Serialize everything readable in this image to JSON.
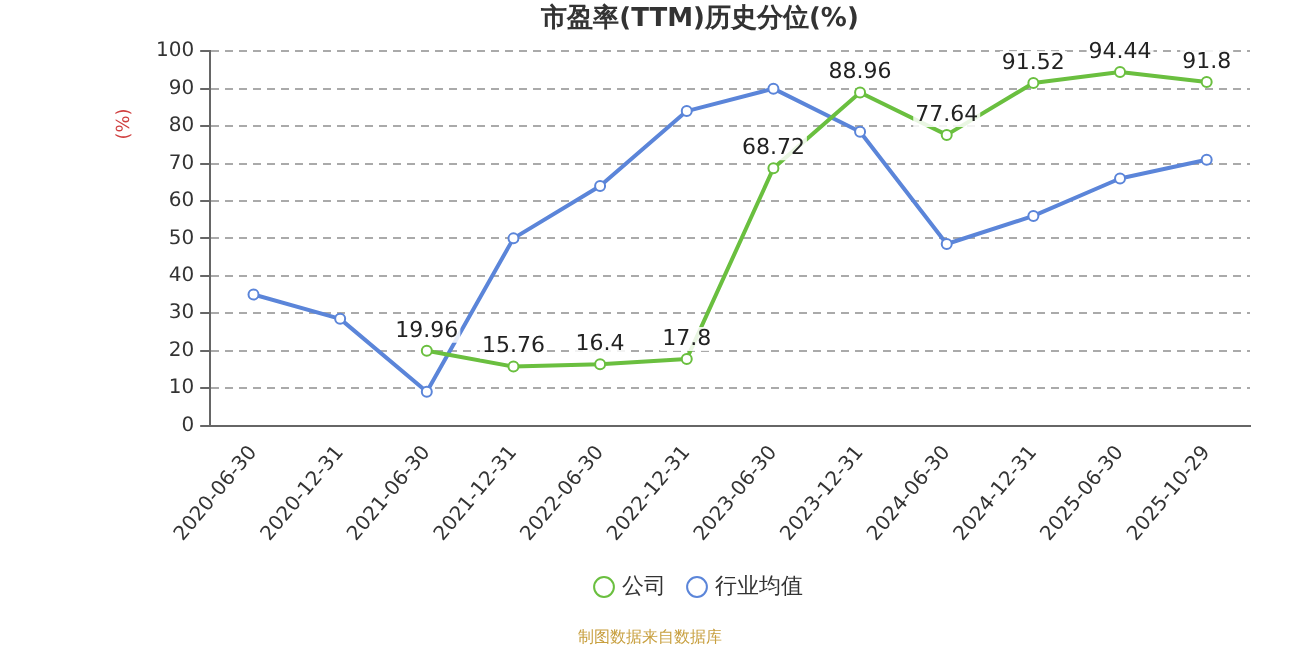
{
  "chart_data": {
    "type": "line",
    "title": "市盈率(TTM)历史分位(%)",
    "ylabel": "(%)",
    "categories": [
      "2020-06-30",
      "2020-12-31",
      "2021-06-30",
      "2021-12-31",
      "2022-06-30",
      "2022-12-31",
      "2023-06-30",
      "2023-12-31",
      "2024-06-30",
      "2024-12-31",
      "2025-06-30",
      "2025-10-29"
    ],
    "series": [
      {
        "name": "公司",
        "color": "#6abf3f",
        "values": [
          null,
          null,
          19.96,
          15.76,
          16.4,
          17.8,
          68.72,
          88.96,
          77.64,
          91.52,
          94.44,
          91.8
        ],
        "value_labels": [
          null,
          null,
          "19.96",
          "15.76",
          "16.4",
          "17.8",
          "68.72",
          "88.96",
          "77.64",
          "91.52",
          "94.44",
          "91.8"
        ]
      },
      {
        "name": "行业均值",
        "color": "#5b85d9",
        "values": [
          35,
          28.5,
          9,
          50,
          64,
          84,
          90,
          78.5,
          48.5,
          56,
          66,
          71
        ]
      }
    ],
    "ylim": [
      0,
      100
    ],
    "yticks": [
      0,
      10,
      20,
      30,
      40,
      50,
      60,
      70,
      80,
      90,
      100
    ],
    "grid": "y",
    "legend": "bottom",
    "marker": "circle",
    "line_style": "solid",
    "annotations": [
      "制图数据来自数据库"
    ]
  }
}
